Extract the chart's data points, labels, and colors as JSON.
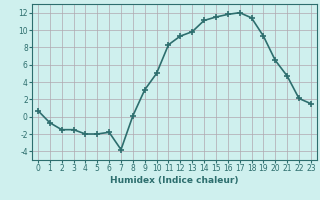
{
  "x": [
    0,
    1,
    2,
    3,
    4,
    5,
    6,
    7,
    8,
    9,
    10,
    11,
    12,
    13,
    14,
    15,
    16,
    17,
    18,
    19,
    20,
    21,
    22,
    23
  ],
  "y": [
    0.7,
    -0.7,
    -1.5,
    -1.5,
    -2.0,
    -2.0,
    -1.8,
    -3.8,
    0.1,
    3.1,
    5.0,
    8.3,
    9.3,
    9.8,
    11.1,
    11.5,
    11.8,
    12.0,
    11.4,
    9.3,
    6.5,
    4.7,
    2.1,
    1.5
  ],
  "line_color": "#2d6e6e",
  "marker": "+",
  "marker_size": 4,
  "xlabel": "Humidex (Indice chaleur)",
  "xlim": [
    -0.5,
    23.5
  ],
  "ylim": [
    -5,
    13
  ],
  "yticks": [
    -4,
    -2,
    0,
    2,
    4,
    6,
    8,
    10,
    12
  ],
  "xticks": [
    0,
    1,
    2,
    3,
    4,
    5,
    6,
    7,
    8,
    9,
    10,
    11,
    12,
    13,
    14,
    15,
    16,
    17,
    18,
    19,
    20,
    21,
    22,
    23
  ],
  "background_color": "#cff0ee",
  "grid_color": "#b0a8b0",
  "line_width": 1.2,
  "tick_fontsize": 5.5,
  "xlabel_fontsize": 6.5
}
